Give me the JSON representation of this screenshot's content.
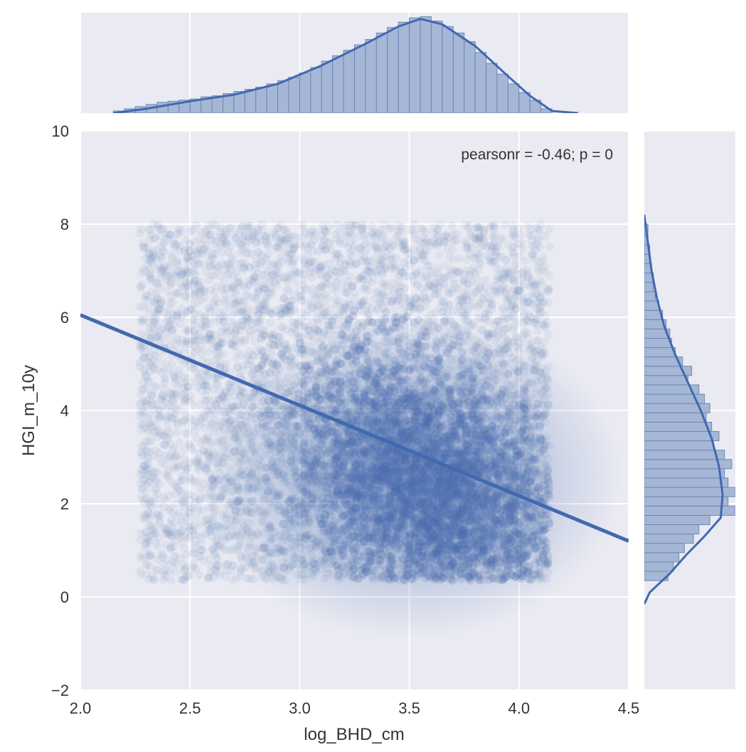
{
  "chart_data": {
    "type": "scatter",
    "subtype": "jointplot",
    "title": "",
    "xlabel": "log_BHD_cm",
    "ylabel": "HGI_m_10y",
    "xlim": [
      2.0,
      4.5
    ],
    "ylim": [
      -2,
      10
    ],
    "xticks": [
      2.0,
      2.5,
      3.0,
      3.5,
      4.0,
      4.5
    ],
    "xtick_labels": [
      "2.0",
      "2.5",
      "3.0",
      "3.5",
      "4.0",
      "4.5"
    ],
    "yticks": [
      -2,
      0,
      2,
      4,
      6,
      8,
      10
    ],
    "ytick_labels": [
      "−2",
      "0",
      "2",
      "4",
      "6",
      "8",
      "10"
    ],
    "grid": true,
    "annotation": "pearsonr = -0.46; p = 0",
    "colors": {
      "background": "#eaeaf2",
      "grid": "#ffffff",
      "points": "#4c72b0",
      "line": "#4169b0",
      "hist_fill": "#a6b7d6",
      "hist_edge": "#6e86b4"
    },
    "scatter_extent": {
      "x_range": [
        2.27,
        4.14
      ],
      "y_range": [
        0.35,
        8.0
      ],
      "density_peak": [
        3.6,
        2.0
      ]
    },
    "regression_line": [
      {
        "x": 2.0,
        "y": 6.05
      },
      {
        "x": 4.5,
        "y": 1.2
      }
    ],
    "marginal_x": {
      "type": "histogram+kde",
      "bin_edges": [
        2.15,
        2.2,
        2.25,
        2.3,
        2.35,
        2.4,
        2.45,
        2.5,
        2.55,
        2.6,
        2.65,
        2.7,
        2.75,
        2.8,
        2.85,
        2.9,
        2.95,
        3.0,
        3.05,
        3.1,
        3.15,
        3.2,
        3.25,
        3.3,
        3.35,
        3.4,
        3.45,
        3.5,
        3.55,
        3.6,
        3.65,
        3.7,
        3.75,
        3.8,
        3.85,
        3.9,
        3.95,
        4.0,
        4.05,
        4.1,
        4.15
      ],
      "density": [
        0.02,
        0.04,
        0.06,
        0.08,
        0.1,
        0.11,
        0.12,
        0.13,
        0.15,
        0.16,
        0.18,
        0.2,
        0.22,
        0.24,
        0.27,
        0.3,
        0.33,
        0.37,
        0.42,
        0.48,
        0.53,
        0.58,
        0.63,
        0.68,
        0.74,
        0.79,
        0.84,
        0.88,
        0.89,
        0.85,
        0.8,
        0.74,
        0.66,
        0.56,
        0.46,
        0.36,
        0.27,
        0.19,
        0.12,
        0.04
      ],
      "kde": [
        [
          2.15,
          0.0
        ],
        [
          2.3,
          0.04
        ],
        [
          2.5,
          0.11
        ],
        [
          2.7,
          0.17
        ],
        [
          2.9,
          0.27
        ],
        [
          3.1,
          0.44
        ],
        [
          3.3,
          0.64
        ],
        [
          3.45,
          0.8
        ],
        [
          3.55,
          0.87
        ],
        [
          3.65,
          0.82
        ],
        [
          3.8,
          0.62
        ],
        [
          3.95,
          0.34
        ],
        [
          4.05,
          0.16
        ],
        [
          4.15,
          0.02
        ],
        [
          4.27,
          0.0
        ]
      ],
      "ylim": [
        0,
        0.9
      ]
    },
    "marginal_y": {
      "type": "histogram+kde",
      "bin_edges": [
        0.35,
        0.55,
        0.75,
        0.95,
        1.15,
        1.35,
        1.55,
        1.75,
        1.95,
        2.15,
        2.35,
        2.55,
        2.75,
        2.95,
        3.15,
        3.35,
        3.55,
        3.75,
        3.95,
        4.15,
        4.35,
        4.55,
        4.75,
        4.95,
        5.15,
        5.35,
        5.55,
        5.75,
        5.95,
        6.15,
        6.35,
        6.55,
        6.75,
        6.95,
        7.15,
        7.35,
        7.55,
        7.75,
        8.0
      ],
      "density": [
        0.13,
        0.16,
        0.19,
        0.22,
        0.27,
        0.3,
        0.36,
        0.5,
        0.46,
        0.5,
        0.46,
        0.44,
        0.48,
        0.44,
        0.38,
        0.41,
        0.37,
        0.34,
        0.36,
        0.33,
        0.3,
        0.24,
        0.26,
        0.21,
        0.17,
        0.15,
        0.14,
        0.12,
        0.1,
        0.08,
        0.06,
        0.05,
        0.05,
        0.04,
        0.03,
        0.03,
        0.02,
        0.02
      ],
      "kde": [
        [
          -0.15,
          0.0
        ],
        [
          0.1,
          0.03
        ],
        [
          0.5,
          0.14
        ],
        [
          0.9,
          0.23
        ],
        [
          1.3,
          0.33
        ],
        [
          1.7,
          0.42
        ],
        [
          2.2,
          0.43
        ],
        [
          2.8,
          0.41
        ],
        [
          3.4,
          0.37
        ],
        [
          4.0,
          0.31
        ],
        [
          4.6,
          0.24
        ],
        [
          5.2,
          0.17
        ],
        [
          5.8,
          0.11
        ],
        [
          6.4,
          0.07
        ],
        [
          7.0,
          0.04
        ],
        [
          7.6,
          0.02
        ],
        [
          8.2,
          0.0
        ]
      ],
      "xlim": [
        0,
        0.5
      ]
    }
  }
}
